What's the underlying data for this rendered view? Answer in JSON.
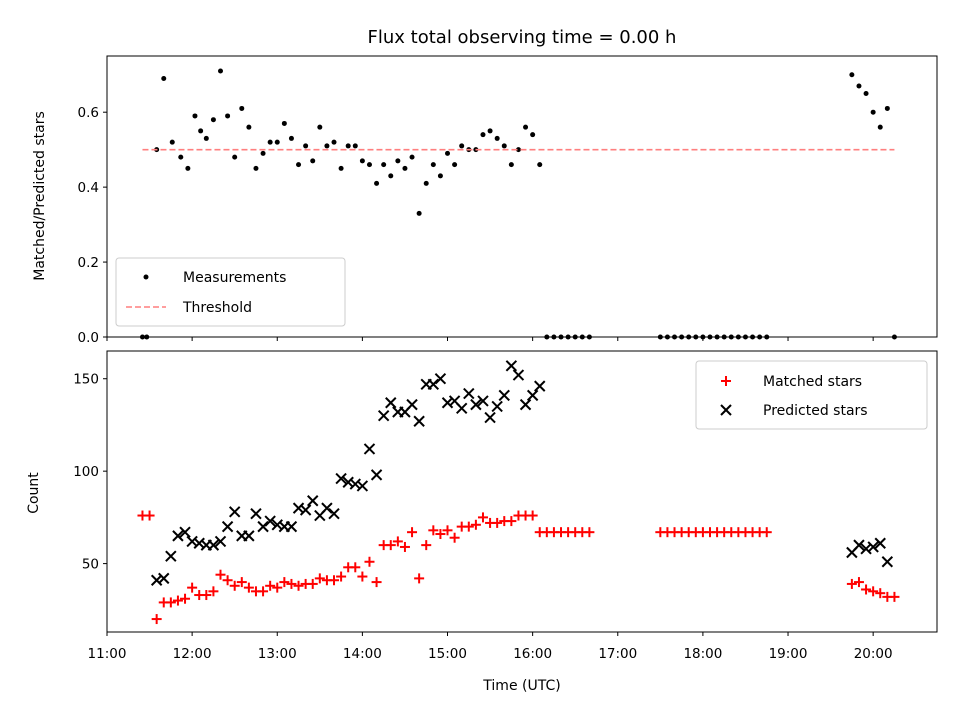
{
  "chart_data": [
    {
      "type": "scatter",
      "title": "Flux total observing time = 0.00 h",
      "xlabel": "",
      "ylabel": "Matched/Predicted stars",
      "xlim": [
        "11:00",
        "20:45"
      ],
      "ylim": [
        0,
        0.75
      ],
      "yticks": [
        "0.0",
        "0.2",
        "0.4",
        "0.6"
      ],
      "grid": false,
      "legend_position": "lower-left",
      "threshold": 0.5,
      "series": [
        {
          "name": "Measurements",
          "color": "#000000",
          "marker": "dot",
          "points": [
            [
              "11:25",
              0.0
            ],
            [
              "11:28",
              0.0
            ],
            [
              "11:35",
              0.5
            ],
            [
              "11:40",
              0.69
            ],
            [
              "11:46",
              0.52
            ],
            [
              "11:52",
              0.48
            ],
            [
              "11:57",
              0.45
            ],
            [
              "12:02",
              0.59
            ],
            [
              "12:06",
              0.55
            ],
            [
              "12:10",
              0.53
            ],
            [
              "12:15",
              0.58
            ],
            [
              "12:20",
              0.71
            ],
            [
              "12:25",
              0.59
            ],
            [
              "12:30",
              0.48
            ],
            [
              "12:35",
              0.61
            ],
            [
              "12:40",
              0.56
            ],
            [
              "12:45",
              0.45
            ],
            [
              "12:50",
              0.49
            ],
            [
              "12:55",
              0.52
            ],
            [
              "13:00",
              0.52
            ],
            [
              "13:05",
              0.57
            ],
            [
              "13:10",
              0.53
            ],
            [
              "13:15",
              0.46
            ],
            [
              "13:20",
              0.51
            ],
            [
              "13:25",
              0.47
            ],
            [
              "13:30",
              0.56
            ],
            [
              "13:35",
              0.51
            ],
            [
              "13:40",
              0.52
            ],
            [
              "13:45",
              0.45
            ],
            [
              "13:50",
              0.51
            ],
            [
              "13:55",
              0.51
            ],
            [
              "14:00",
              0.47
            ],
            [
              "14:05",
              0.46
            ],
            [
              "14:10",
              0.41
            ],
            [
              "14:15",
              0.46
            ],
            [
              "14:20",
              0.43
            ],
            [
              "14:25",
              0.47
            ],
            [
              "14:30",
              0.45
            ],
            [
              "14:35",
              0.48
            ],
            [
              "14:40",
              0.33
            ],
            [
              "14:45",
              0.41
            ],
            [
              "14:50",
              0.46
            ],
            [
              "14:55",
              0.43
            ],
            [
              "15:00",
              0.49
            ],
            [
              "15:05",
              0.46
            ],
            [
              "15:10",
              0.51
            ],
            [
              "15:15",
              0.5
            ],
            [
              "15:20",
              0.5
            ],
            [
              "15:25",
              0.54
            ],
            [
              "15:30",
              0.55
            ],
            [
              "15:35",
              0.53
            ],
            [
              "15:40",
              0.51
            ],
            [
              "15:45",
              0.46
            ],
            [
              "15:50",
              0.5
            ],
            [
              "15:55",
              0.56
            ],
            [
              "16:00",
              0.54
            ],
            [
              "16:05",
              0.46
            ],
            [
              "16:10",
              0.0
            ],
            [
              "16:15",
              0.0
            ],
            [
              "16:20",
              0.0
            ],
            [
              "16:25",
              0.0
            ],
            [
              "16:30",
              0.0
            ],
            [
              "16:35",
              0.0
            ],
            [
              "16:40",
              0.0
            ],
            [
              "17:30",
              0.0
            ],
            [
              "17:35",
              0.0
            ],
            [
              "17:40",
              0.0
            ],
            [
              "17:45",
              0.0
            ],
            [
              "17:50",
              0.0
            ],
            [
              "17:55",
              0.0
            ],
            [
              "18:00",
              0.0
            ],
            [
              "18:05",
              0.0
            ],
            [
              "18:10",
              0.0
            ],
            [
              "18:15",
              0.0
            ],
            [
              "18:20",
              0.0
            ],
            [
              "18:25",
              0.0
            ],
            [
              "18:30",
              0.0
            ],
            [
              "18:35",
              0.0
            ],
            [
              "18:40",
              0.0
            ],
            [
              "18:45",
              0.0
            ],
            [
              "19:45",
              0.7
            ],
            [
              "19:50",
              0.67
            ],
            [
              "19:55",
              0.65
            ],
            [
              "20:00",
              0.6
            ],
            [
              "20:05",
              0.56
            ],
            [
              "20:10",
              0.61
            ],
            [
              "20:15",
              0.0
            ]
          ]
        },
        {
          "name": "Threshold",
          "color": "#ff7f7f",
          "style": "dashed",
          "points": [
            [
              "11:25",
              0.5
            ],
            [
              "20:15",
              0.5
            ]
          ]
        }
      ]
    },
    {
      "type": "scatter",
      "title": "",
      "xlabel": "Time (UTC)",
      "ylabel": "Count",
      "xlim": [
        "11:00",
        "20:45"
      ],
      "ylim": [
        13,
        165
      ],
      "xticks": [
        "11:00",
        "12:00",
        "13:00",
        "14:00",
        "15:00",
        "16:00",
        "17:00",
        "18:00",
        "19:00",
        "20:00"
      ],
      "yticks": [
        "50",
        "100",
        "150"
      ],
      "grid": false,
      "legend_position": "upper-right",
      "series": [
        {
          "name": "Matched stars",
          "color": "#ff0000",
          "marker": "plus",
          "points": [
            [
              "11:25",
              76
            ],
            [
              "11:30",
              76
            ],
            [
              "11:35",
              20
            ],
            [
              "11:40",
              29
            ],
            [
              "11:45",
              29
            ],
            [
              "11:50",
              30
            ],
            [
              "11:55",
              31
            ],
            [
              "12:00",
              37
            ],
            [
              "12:05",
              33
            ],
            [
              "12:10",
              33
            ],
            [
              "12:15",
              35
            ],
            [
              "12:20",
              44
            ],
            [
              "12:25",
              41
            ],
            [
              "12:30",
              38
            ],
            [
              "12:35",
              40
            ],
            [
              "12:40",
              37
            ],
            [
              "12:45",
              35
            ],
            [
              "12:50",
              35
            ],
            [
              "12:55",
              38
            ],
            [
              "13:00",
              37
            ],
            [
              "13:05",
              40
            ],
            [
              "13:10",
              39
            ],
            [
              "13:15",
              38
            ],
            [
              "13:20",
              39
            ],
            [
              "13:25",
              39
            ],
            [
              "13:30",
              42
            ],
            [
              "13:35",
              41
            ],
            [
              "13:40",
              41
            ],
            [
              "13:45",
              43
            ],
            [
              "13:50",
              48
            ],
            [
              "13:55",
              48
            ],
            [
              "14:00",
              43
            ],
            [
              "14:05",
              51
            ],
            [
              "14:10",
              40
            ],
            [
              "14:15",
              60
            ],
            [
              "14:20",
              60
            ],
            [
              "14:25",
              62
            ],
            [
              "14:30",
              59
            ],
            [
              "14:35",
              67
            ],
            [
              "14:40",
              42
            ],
            [
              "14:45",
              60
            ],
            [
              "14:50",
              68
            ],
            [
              "14:55",
              66
            ],
            [
              "15:00",
              68
            ],
            [
              "15:05",
              64
            ],
            [
              "15:10",
              70
            ],
            [
              "15:15",
              70
            ],
            [
              "15:20",
              71
            ],
            [
              "15:25",
              75
            ],
            [
              "15:30",
              72
            ],
            [
              "15:35",
              72
            ],
            [
              "15:40",
              73
            ],
            [
              "15:45",
              73
            ],
            [
              "15:50",
              76
            ],
            [
              "15:55",
              76
            ],
            [
              "16:00",
              76
            ],
            [
              "16:05",
              67
            ],
            [
              "16:10",
              67
            ],
            [
              "16:15",
              67
            ],
            [
              "16:20",
              67
            ],
            [
              "16:25",
              67
            ],
            [
              "16:30",
              67
            ],
            [
              "16:35",
              67
            ],
            [
              "16:40",
              67
            ],
            [
              "17:30",
              67
            ],
            [
              "17:35",
              67
            ],
            [
              "17:40",
              67
            ],
            [
              "17:45",
              67
            ],
            [
              "17:50",
              67
            ],
            [
              "17:55",
              67
            ],
            [
              "18:00",
              67
            ],
            [
              "18:05",
              67
            ],
            [
              "18:10",
              67
            ],
            [
              "18:15",
              67
            ],
            [
              "18:20",
              67
            ],
            [
              "18:25",
              67
            ],
            [
              "18:30",
              67
            ],
            [
              "18:35",
              67
            ],
            [
              "18:40",
              67
            ],
            [
              "18:45",
              67
            ],
            [
              "19:45",
              39
            ],
            [
              "19:50",
              40
            ],
            [
              "19:55",
              36
            ],
            [
              "20:00",
              35
            ],
            [
              "20:05",
              34
            ],
            [
              "20:10",
              32
            ],
            [
              "20:15",
              32
            ]
          ]
        },
        {
          "name": "Predicted stars",
          "color": "#000000",
          "marker": "x",
          "points": [
            [
              "11:35",
              41
            ],
            [
              "11:40",
              42
            ],
            [
              "11:45",
              54
            ],
            [
              "11:50",
              65
            ],
            [
              "11:55",
              67
            ],
            [
              "12:00",
              62
            ],
            [
              "12:05",
              61
            ],
            [
              "12:10",
              60
            ],
            [
              "12:15",
              60
            ],
            [
              "12:20",
              62
            ],
            [
              "12:25",
              70
            ],
            [
              "12:30",
              78
            ],
            [
              "12:35",
              65
            ],
            [
              "12:40",
              65
            ],
            [
              "12:45",
              77
            ],
            [
              "12:50",
              70
            ],
            [
              "12:55",
              73
            ],
            [
              "13:00",
              71
            ],
            [
              "13:05",
              70
            ],
            [
              "13:10",
              70
            ],
            [
              "13:15",
              80
            ],
            [
              "13:20",
              79
            ],
            [
              "13:25",
              84
            ],
            [
              "13:30",
              76
            ],
            [
              "13:35",
              80
            ],
            [
              "13:40",
              77
            ],
            [
              "13:45",
              96
            ],
            [
              "13:50",
              94
            ],
            [
              "13:55",
              93
            ],
            [
              "14:00",
              92
            ],
            [
              "14:05",
              112
            ],
            [
              "14:10",
              98
            ],
            [
              "14:15",
              130
            ],
            [
              "14:20",
              137
            ],
            [
              "14:25",
              132
            ],
            [
              "14:30",
              132
            ],
            [
              "14:35",
              136
            ],
            [
              "14:40",
              127
            ],
            [
              "14:45",
              147
            ],
            [
              "14:50",
              147
            ],
            [
              "14:55",
              150
            ],
            [
              "15:00",
              137
            ],
            [
              "15:05",
              138
            ],
            [
              "15:10",
              134
            ],
            [
              "15:15",
              142
            ],
            [
              "15:20",
              136
            ],
            [
              "15:25",
              138
            ],
            [
              "15:30",
              129
            ],
            [
              "15:35",
              135
            ],
            [
              "15:40",
              141
            ],
            [
              "15:45",
              157
            ],
            [
              "15:50",
              152
            ],
            [
              "15:55",
              136
            ],
            [
              "16:00",
              141
            ],
            [
              "16:05",
              146
            ],
            [
              "19:45",
              56
            ],
            [
              "19:50",
              60
            ],
            [
              "19:55",
              58
            ],
            [
              "20:00",
              59
            ],
            [
              "20:05",
              61
            ],
            [
              "20:10",
              51
            ]
          ]
        }
      ]
    }
  ]
}
